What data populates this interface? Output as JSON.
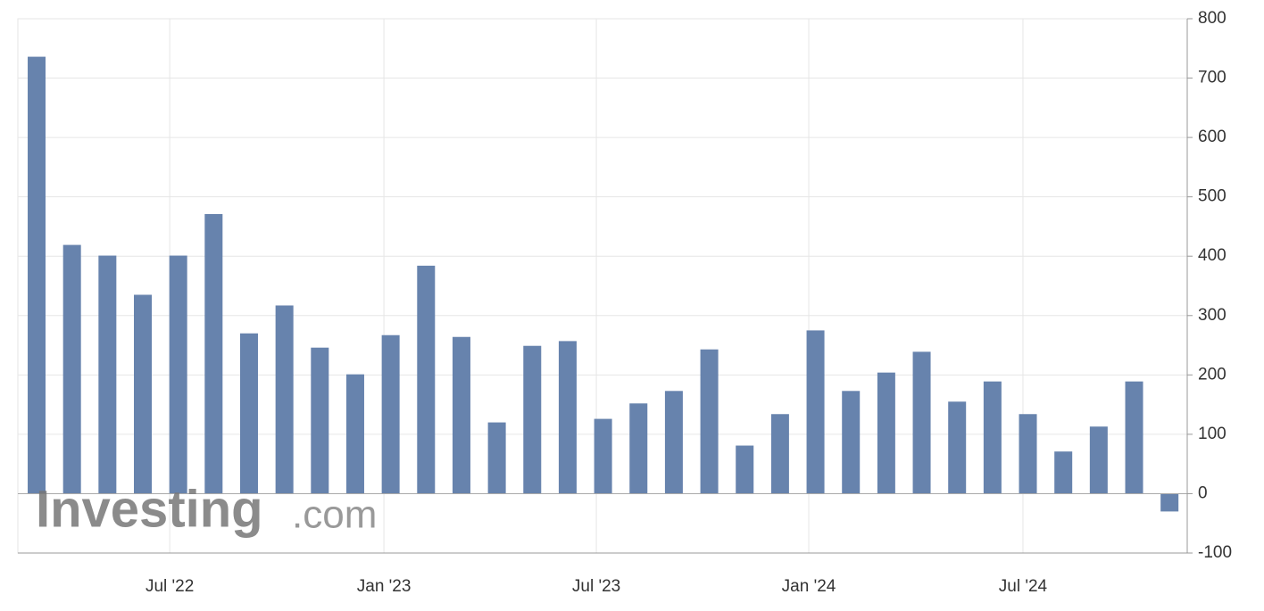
{
  "chart_data": {
    "type": "bar",
    "watermark": {
      "brand": "Investing",
      "suffix": ".com"
    },
    "categories": [
      null,
      null,
      null,
      null,
      null,
      null,
      null,
      null,
      null,
      null,
      null,
      null,
      null,
      null,
      null,
      null,
      null,
      null,
      null,
      null,
      null,
      null,
      null,
      null,
      null,
      null,
      null,
      null,
      null,
      null,
      null,
      null,
      null
    ],
    "values": [
      736,
      419,
      401,
      335,
      401,
      471,
      270,
      317,
      246,
      201,
      267,
      384,
      264,
      120,
      249,
      257,
      126,
      152,
      173,
      243,
      81,
      134,
      275,
      173,
      204,
      239,
      155,
      189,
      134,
      71,
      113,
      189,
      -30
    ],
    "color": "#6783ad",
    "xlim": [
      -0.53,
      32.5
    ],
    "xticks": [
      {
        "value": 3.76,
        "label": "Jul '22"
      },
      {
        "value": 9.81,
        "label": "Jan '23"
      },
      {
        "value": 15.81,
        "label": "Jul '23"
      },
      {
        "value": 21.81,
        "label": "Jan '24"
      },
      {
        "value": 27.86,
        "label": "Jul '24"
      }
    ],
    "ylim": [
      -100,
      800
    ],
    "yticks": [
      -100,
      0,
      100,
      200,
      300,
      400,
      500,
      600,
      700,
      800
    ],
    "grid": true
  }
}
